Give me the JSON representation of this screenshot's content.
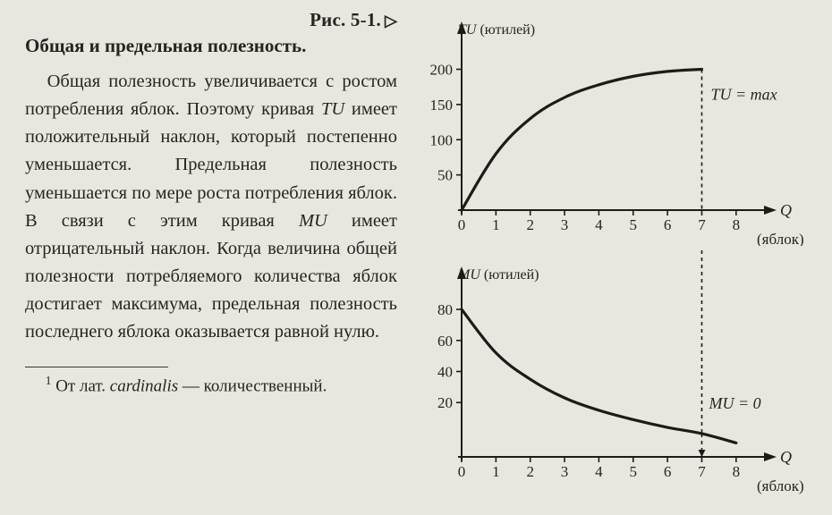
{
  "figure_ref": "Рис. 5-1.",
  "heading": "Общая и предельная полезность.",
  "paragraph": "Общая полезность увеличивается с ростом потребления яблок. Поэтому кривая TU имеет положительный наклон, который постепенно уменьшается. Предельная полезность уменьшается по мере роста потребления яблок. В связи с этим кривая MU имеет отрицательный наклон. Когда величина общей полезности потребляемого количества яблок достигает максимума, предельная полезность последнего яблока оказывается равной нулю.",
  "footnote_prefix": "От лат. ",
  "footnote_term": "cardinalis",
  "footnote_suffix": " — количественный.",
  "charts": {
    "background_color": "#e9e6df",
    "axis_color": "#1d1b19",
    "curve_color": "#1d1b19",
    "curve_width": 3.2,
    "dash_pattern": "4 4",
    "top": {
      "type": "line",
      "y_axis_title": "TU (ютилей)",
      "x_axis_title": "Q",
      "x_axis_subtitle": "(яблок)",
      "annotation": "TU = max",
      "y_ticks": [
        50,
        100,
        150,
        200
      ],
      "x_ticks": [
        0,
        1,
        2,
        3,
        4,
        5,
        6,
        7,
        8
      ],
      "xlim": [
        0,
        8.5
      ],
      "ylim": [
        0,
        240
      ],
      "max_at_x": 7,
      "curve_points": [
        {
          "x": 0,
          "y": 0
        },
        {
          "x": 1,
          "y": 80
        },
        {
          "x": 2,
          "y": 130
        },
        {
          "x": 3,
          "y": 160
        },
        {
          "x": 4,
          "y": 178
        },
        {
          "x": 5,
          "y": 190
        },
        {
          "x": 6,
          "y": 197
        },
        {
          "x": 7,
          "y": 200
        }
      ]
    },
    "bottom": {
      "type": "line",
      "y_axis_title": "MU (ютилей)",
      "x_axis_title": "Q",
      "x_axis_subtitle": "(яблок)",
      "annotation": "MU = 0",
      "y_ticks": [
        20,
        40,
        60,
        80
      ],
      "x_ticks": [
        0,
        1,
        2,
        3,
        4,
        5,
        6,
        7,
        8
      ],
      "xlim": [
        0,
        8.5
      ],
      "ylim": [
        -15,
        95
      ],
      "zero_at_x": 7,
      "curve_points": [
        {
          "x": 0,
          "y": 80
        },
        {
          "x": 1,
          "y": 52
        },
        {
          "x": 2,
          "y": 35
        },
        {
          "x": 3,
          "y": 23
        },
        {
          "x": 4,
          "y": 15
        },
        {
          "x": 5,
          "y": 9
        },
        {
          "x": 6,
          "y": 4
        },
        {
          "x": 7,
          "y": 0
        },
        {
          "x": 8,
          "y": -6
        }
      ]
    }
  }
}
